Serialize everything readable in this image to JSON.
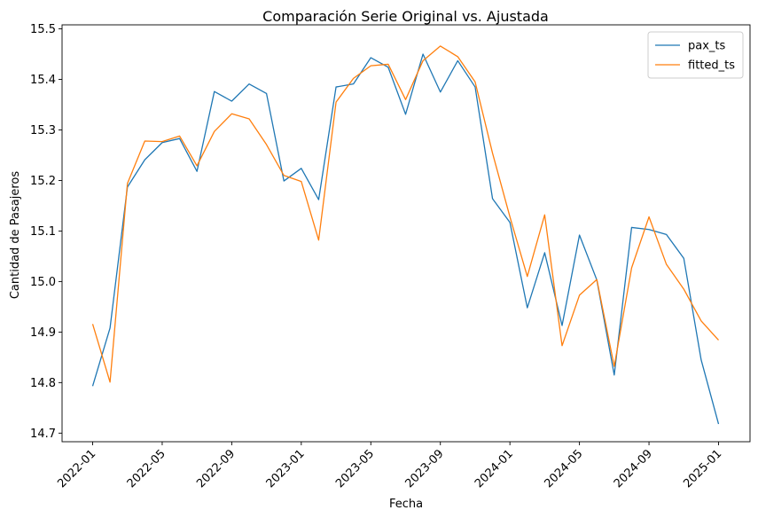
{
  "chart_data": {
    "type": "line",
    "title": "Comparación Serie Original vs. Ajustada",
    "xlabel": "Fecha",
    "ylabel": "Cantidad de Pasajeros",
    "x": [
      "2022-01",
      "2022-02",
      "2022-03",
      "2022-04",
      "2022-05",
      "2022-06",
      "2022-07",
      "2022-08",
      "2022-09",
      "2022-10",
      "2022-11",
      "2022-12",
      "2023-01",
      "2023-02",
      "2023-03",
      "2023-04",
      "2023-05",
      "2023-06",
      "2023-07",
      "2023-08",
      "2023-09",
      "2023-10",
      "2023-11",
      "2023-12",
      "2024-01",
      "2024-02",
      "2024-03",
      "2024-04",
      "2024-05",
      "2024-06",
      "2024-07",
      "2024-08",
      "2024-09",
      "2024-10",
      "2024-11",
      "2024-12",
      "2025-01"
    ],
    "x_ticks": [
      "2022-01",
      "2022-05",
      "2022-09",
      "2023-01",
      "2023-05",
      "2023-09",
      "2024-01",
      "2024-05",
      "2024-09",
      "2025-01"
    ],
    "y_ticks": [
      14.7,
      14.8,
      14.9,
      15.0,
      15.1,
      15.2,
      15.3,
      15.4,
      15.5
    ],
    "ylim": [
      14.683,
      15.508
    ],
    "grid": false,
    "legend_position": "top-right",
    "series": [
      {
        "name": "pax_ts",
        "color": "#1f77b4",
        "values": [
          14.793,
          14.908,
          15.187,
          15.241,
          15.275,
          15.283,
          15.218,
          15.376,
          15.357,
          15.391,
          15.372,
          15.199,
          15.224,
          15.162,
          15.385,
          15.391,
          15.443,
          15.424,
          15.331,
          15.45,
          15.375,
          15.437,
          15.385,
          15.164,
          15.117,
          14.948,
          15.057,
          14.913,
          15.092,
          15.003,
          14.815,
          15.107,
          15.103,
          15.093,
          15.046,
          14.845,
          14.718
        ]
      },
      {
        "name": "fitted_ts",
        "color": "#ff7f0e",
        "values": [
          14.916,
          14.801,
          15.194,
          15.278,
          15.277,
          15.288,
          15.229,
          15.297,
          15.332,
          15.322,
          15.271,
          15.21,
          15.198,
          15.082,
          15.355,
          15.402,
          15.427,
          15.43,
          15.36,
          15.437,
          15.466,
          15.445,
          15.395,
          15.254,
          15.128,
          15.01,
          15.132,
          14.873,
          14.973,
          15.004,
          14.832,
          15.027,
          15.128,
          15.034,
          14.985,
          14.922,
          14.884
        ]
      }
    ]
  }
}
